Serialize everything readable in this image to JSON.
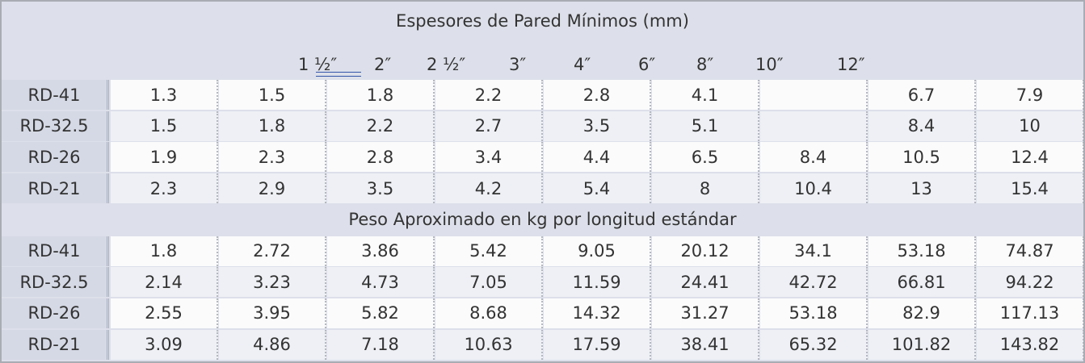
{
  "title": "Espesores de Pared Mínimos (mm)",
  "sizes": [
    "1 ½″",
    "2″",
    "2 ½″",
    "3″",
    "4″",
    "6″",
    "8″",
    "10″",
    "12″"
  ],
  "wall_thickness": {
    "rows": [
      {
        "label": "RD-41",
        "values": [
          1.3,
          1.5,
          1.8,
          2.2,
          2.8,
          4.1,
          null,
          6.7,
          7.9
        ]
      },
      {
        "label": "RD-32.5",
        "values": [
          1.5,
          1.8,
          2.2,
          2.7,
          3.5,
          5.1,
          null,
          8.4,
          10
        ]
      },
      {
        "label": "RD-26",
        "values": [
          1.9,
          2.3,
          2.8,
          3.4,
          4.4,
          6.5,
          8.4,
          10.5,
          12.4
        ]
      },
      {
        "label": "RD-21",
        "values": [
          2.3,
          2.9,
          3.5,
          4.2,
          5.4,
          8,
          10.4,
          13,
          15.4
        ]
      }
    ]
  },
  "weight": {
    "title": "Peso Aproximado en kg por longitud estándar",
    "rows": [
      {
        "label": "RD-41",
        "values": [
          1.8,
          2.72,
          3.86,
          5.42,
          9.05,
          20.12,
          34.1,
          53.18,
          74.87
        ]
      },
      {
        "label": "RD-32.5",
        "values": [
          2.14,
          3.23,
          4.73,
          7.05,
          11.59,
          24.41,
          42.72,
          66.81,
          94.22
        ]
      },
      {
        "label": "RD-26",
        "values": [
          2.55,
          3.95,
          5.82,
          8.68,
          14.32,
          31.27,
          53.18,
          82.9,
          117.13
        ]
      },
      {
        "label": "RD-21",
        "values": [
          3.09,
          4.86,
          7.18,
          10.63,
          17.59,
          38.41,
          65.32,
          101.82,
          143.82
        ]
      }
    ]
  }
}
